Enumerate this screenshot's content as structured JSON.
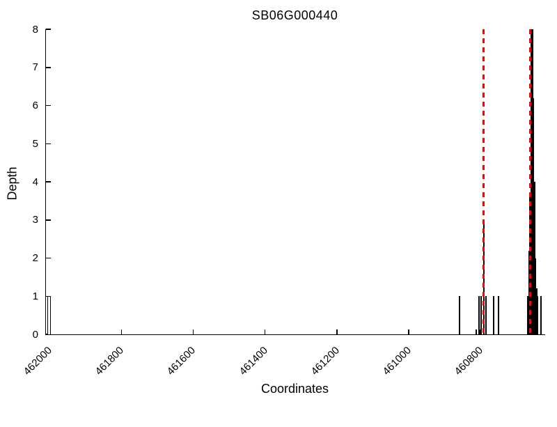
{
  "chart_data": {
    "type": "bar",
    "title": "SB06G000440",
    "xlabel": "Coordinates",
    "ylabel": "Depth",
    "x_axis_reversed": true,
    "xlim": [
      462010,
      460620
    ],
    "ylim": [
      0,
      8
    ],
    "x_ticks": [
      462000,
      461800,
      461600,
      461400,
      461200,
      461000,
      460800
    ],
    "y_ticks": [
      0,
      1,
      2,
      3,
      4,
      5,
      6,
      7,
      8
    ],
    "bar_color": "#000000",
    "marker_color": "#ff0000",
    "marker_style": "dashed",
    "depth_bars": [
      {
        "x": 462000,
        "depth": 1,
        "hollow": true
      },
      {
        "x": 460858,
        "depth": 1
      },
      {
        "x": 460812,
        "depth": 0.12
      },
      {
        "x": 460805,
        "depth": 1
      },
      {
        "x": 460799,
        "depth": 1
      },
      {
        "x": 460791,
        "depth": 3
      },
      {
        "x": 460784,
        "depth": 1
      },
      {
        "x": 460764,
        "depth": 1
      },
      {
        "x": 460749,
        "depth": 1
      },
      {
        "x": 460668,
        "depth": 1
      },
      {
        "x": 460665,
        "depth": 2.2
      },
      {
        "x": 460662,
        "depth": 3.6
      },
      {
        "x": 460659,
        "depth": 8
      },
      {
        "x": 460657,
        "depth": 8
      },
      {
        "x": 460655,
        "depth": 8
      },
      {
        "x": 460653,
        "depth": 6.2
      },
      {
        "x": 460650,
        "depth": 4
      },
      {
        "x": 460647,
        "depth": 2
      },
      {
        "x": 460644,
        "depth": 1.2
      },
      {
        "x": 460641,
        "depth": 1
      },
      {
        "x": 460631,
        "depth": 1
      }
    ],
    "marker_lines": [
      {
        "x": 460791
      },
      {
        "x": 460662
      }
    ]
  }
}
